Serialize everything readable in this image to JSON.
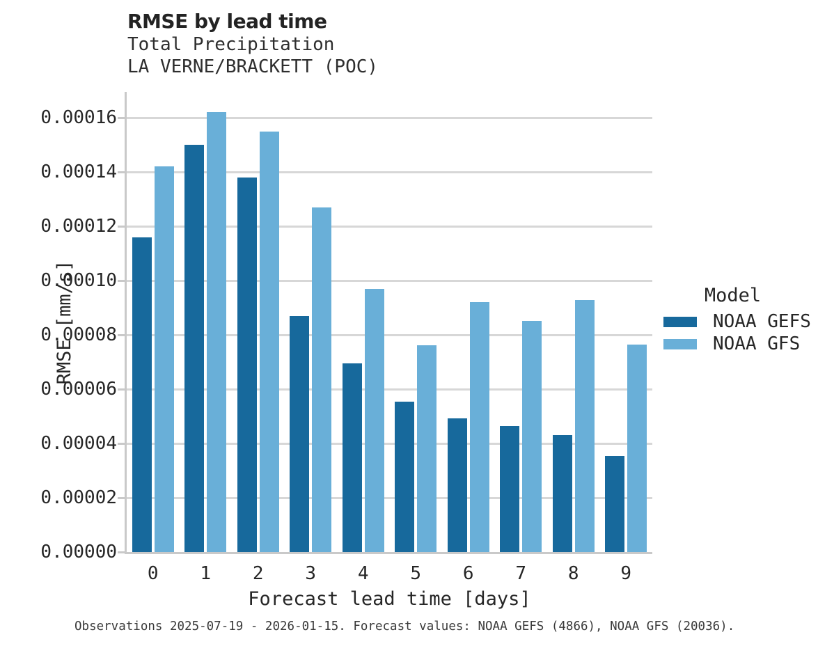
{
  "figure": {
    "title": "RMSE by lead time",
    "subtitle_line1": "Total Precipitation",
    "subtitle_line2": "LA VERNE/BRACKETT (POC)",
    "footnote": "Observations 2025-07-19 - 2026-01-15. Forecast values: NOAA GEFS (4866), NOAA GFS (20036)."
  },
  "chart_data": {
    "type": "bar",
    "title": "RMSE by lead time",
    "subtitle": [
      "Total Precipitation",
      "LA VERNE/BRACKETT (POC)"
    ],
    "categories": [
      "0",
      "1",
      "2",
      "3",
      "4",
      "5",
      "6",
      "7",
      "8",
      "9"
    ],
    "series": [
      {
        "name": "NOAA GEFS",
        "color": "#17699c",
        "values": [
          0.000116,
          0.00015,
          0.000138,
          8.7e-05,
          6.95e-05,
          5.55e-05,
          4.92e-05,
          4.65e-05,
          4.32e-05,
          3.55e-05
        ]
      },
      {
        "name": "NOAA GFS",
        "color": "#69afd8",
        "values": [
          0.000142,
          0.000162,
          0.000155,
          0.000127,
          9.7e-05,
          7.62e-05,
          9.2e-05,
          8.52e-05,
          9.28e-05,
          7.65e-05
        ]
      }
    ],
    "xlabel": "Forecast lead time [days]",
    "ylabel": "RMSE [mm/s]",
    "ylim": [
      0,
      0.00016
    ],
    "ytick_step": 2e-05,
    "ytick_labels": [
      "0.00000",
      "0.00002",
      "0.00004",
      "0.00006",
      "0.00008",
      "0.00010",
      "0.00012",
      "0.00014",
      "0.00016"
    ],
    "grid": "horizontal",
    "legend": {
      "title": "Model",
      "position": "right",
      "entries": [
        "NOAA GEFS",
        "NOAA GFS"
      ]
    },
    "footnote": "Observations 2025-07-19 - 2026-01-15. Forecast values: NOAA GEFS (4866), NOAA GFS (20036)."
  },
  "colors": {
    "bar_gefs": "#17699c",
    "bar_gfs": "#69afd8",
    "gridline": "#d7d7d7",
    "spine": "#c9c9c9",
    "text": "#262626",
    "footnote_text": "#3a3a3a",
    "background": "#ffffff"
  }
}
